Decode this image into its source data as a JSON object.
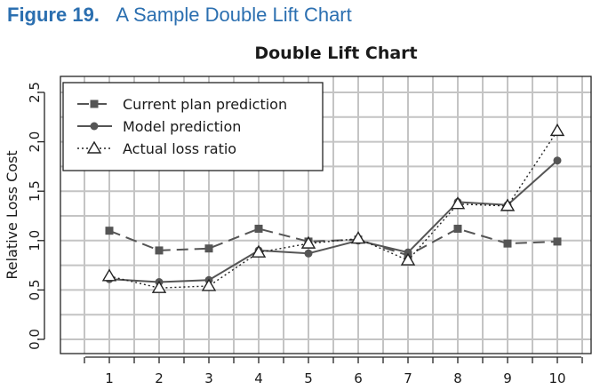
{
  "figure": {
    "number": "Figure 19.",
    "title": "A Sample Double Lift Chart"
  },
  "chart_data": {
    "type": "line",
    "title": "Double Lift Chart",
    "xlabel": "",
    "ylabel": "Relative Loss Cost",
    "categories": [
      "1",
      "2",
      "3",
      "4",
      "5",
      "6",
      "7",
      "8",
      "9",
      "10"
    ],
    "yticks": [
      "0.0",
      "0.5",
      "1.0",
      "1.5",
      "2.0",
      "2.5"
    ],
    "ylim": [
      0,
      2.5
    ],
    "grid": true,
    "legend_position": "top-left",
    "series": [
      {
        "name": "Current plan prediction",
        "marker": "square",
        "line": "dashed",
        "color": "#555555",
        "values": [
          1.1,
          0.9,
          0.92,
          1.12,
          0.99,
          1.01,
          0.85,
          1.12,
          0.97,
          0.99
        ]
      },
      {
        "name": "Model prediction",
        "marker": "circle",
        "line": "solid",
        "color": "#555555",
        "values": [
          0.61,
          0.58,
          0.6,
          0.9,
          0.87,
          1.0,
          0.88,
          1.39,
          1.36,
          1.81
        ]
      },
      {
        "name": "Actual loss ratio",
        "marker": "triangle",
        "line": "dotted",
        "color": "#222222",
        "values": [
          0.64,
          0.52,
          0.54,
          0.88,
          0.97,
          1.02,
          0.8,
          1.37,
          1.35,
          2.11
        ]
      }
    ]
  }
}
